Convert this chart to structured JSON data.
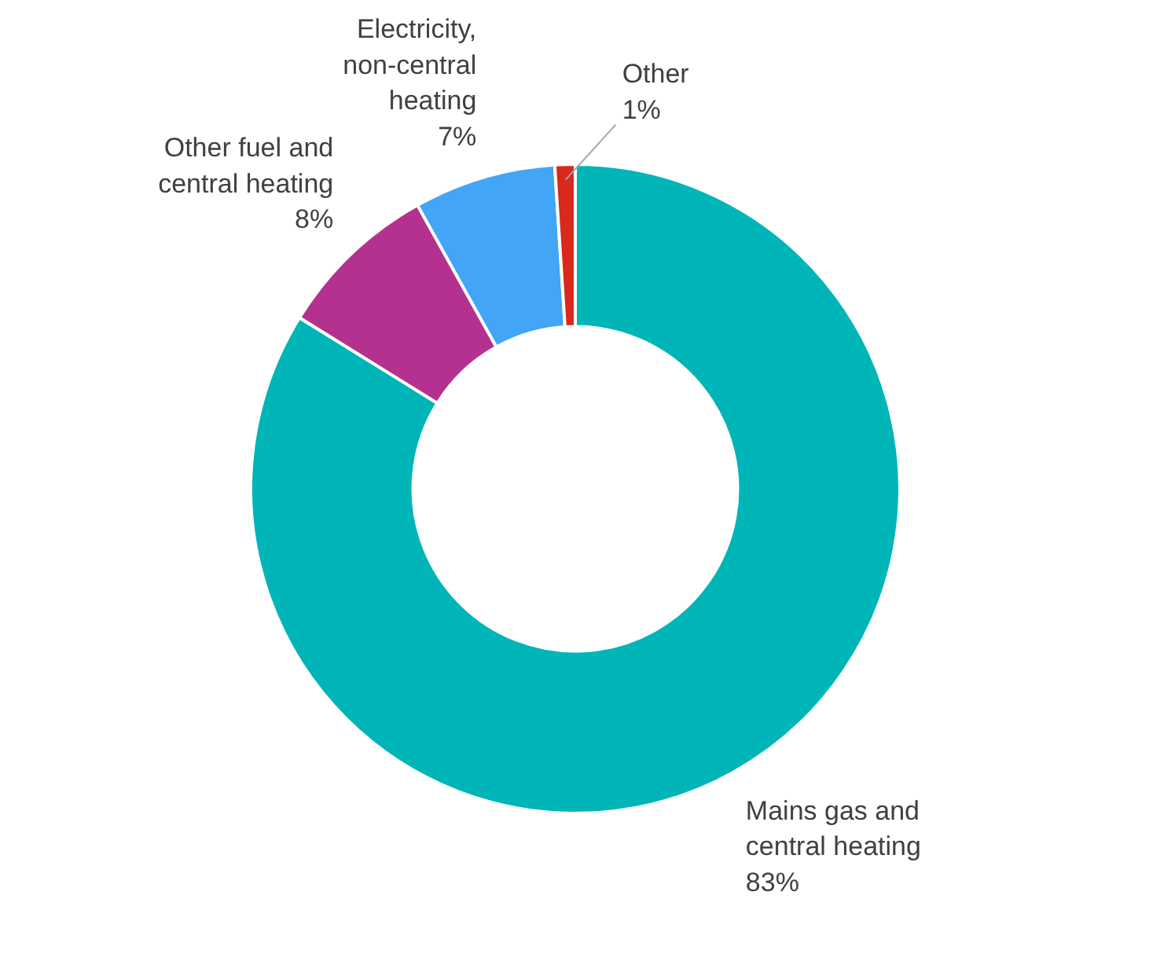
{
  "chart_data": {
    "type": "donut",
    "categories": [
      "Mains gas and central heating",
      "Other fuel and central heating",
      "Electricity, non-central heating",
      "Other"
    ],
    "values": [
      83,
      8,
      7,
      1
    ],
    "value_labels": [
      "83%",
      "8%",
      "7%",
      "1%"
    ],
    "colors": [
      "#00b5b8",
      "#b5318f",
      "#42a5f5",
      "#d9291c"
    ]
  }
}
